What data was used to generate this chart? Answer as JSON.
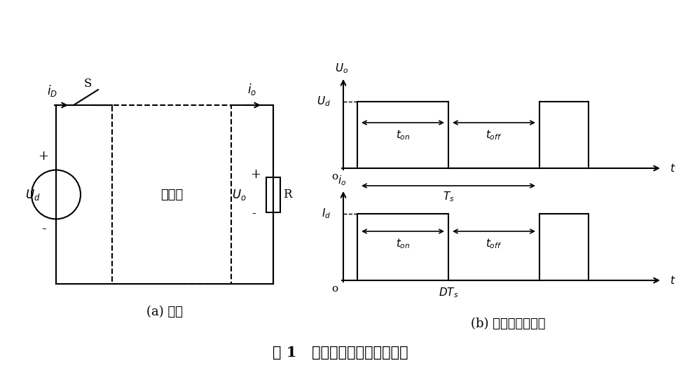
{
  "fig_width": 9.72,
  "fig_height": 5.35,
  "bg_color": "#ffffff",
  "title": "图 1   降压型斩波器电路及波形",
  "subtitle_a": "(a) 电路",
  "subtitle_b": "(b) 电压、电流波形",
  "circuit_label_choppper": "斩波器",
  "circuit_label_Ud": "U_d",
  "circuit_label_Uo": "U_o",
  "circuit_label_R": "R",
  "circuit_label_S": "S",
  "circuit_label_iD": "i_D",
  "circuit_label_io": "i_o",
  "waveform_labels": [
    "U_o",
    "U_d",
    "t_{on}",
    "t_{off}",
    "T_s",
    "t",
    "o",
    "i_o",
    "I_d",
    "t_{on}",
    "t_{off}",
    "DT_s",
    "t",
    "o"
  ],
  "line_color": "#000000",
  "font_size": 11
}
